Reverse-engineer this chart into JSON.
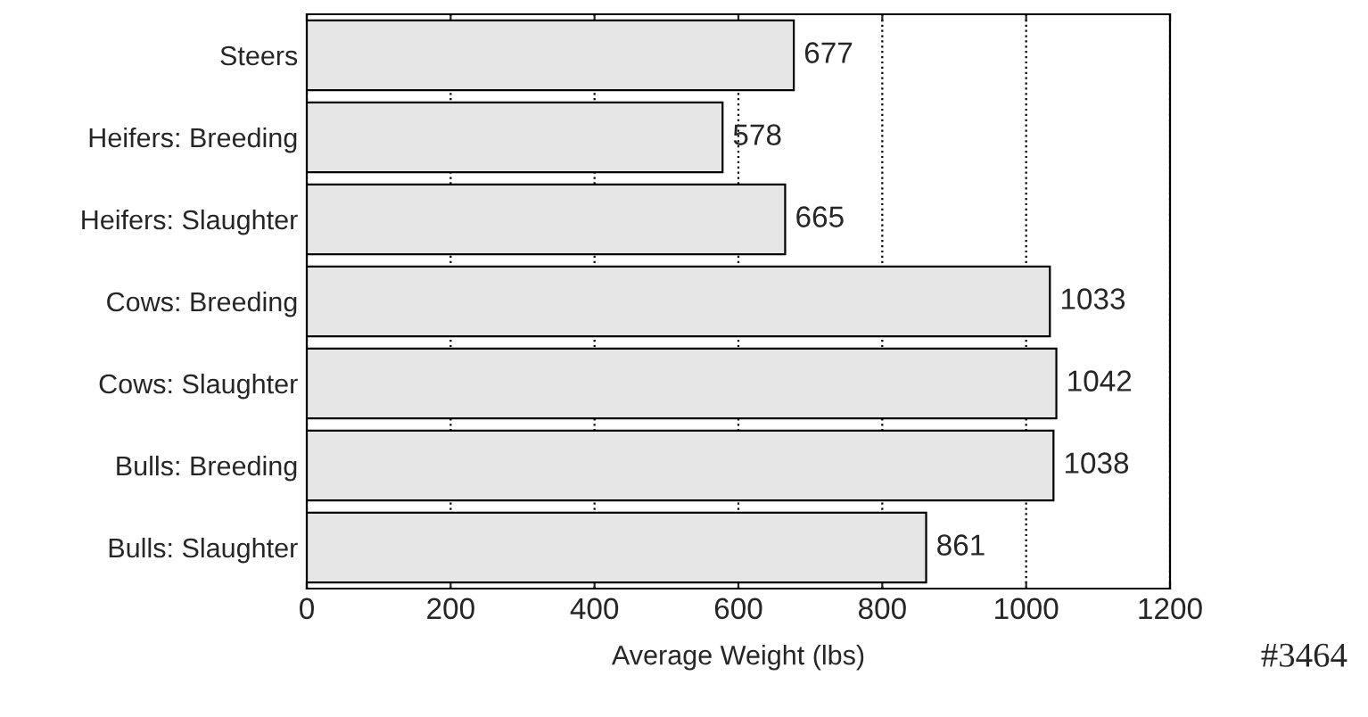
{
  "chart_data": {
    "type": "bar",
    "orientation": "horizontal",
    "xlabel": "Average Weight (lbs)",
    "categories": [
      "Steers",
      "Heifers: Breeding",
      "Heifers: Slaughter",
      "Cows: Breeding",
      "Cows: Slaughter",
      "Bulls: Breeding",
      "Bulls: Slaughter"
    ],
    "values": [
      677,
      578,
      665,
      1033,
      1042,
      1038,
      861
    ],
    "color": "#e6e6e6",
    "xlim": [
      0,
      1200
    ],
    "xticks": [
      0,
      200,
      400,
      600,
      800,
      1000,
      1200
    ],
    "grid": "x",
    "data_labels": true,
    "annotations": [
      "#3464"
    ]
  }
}
